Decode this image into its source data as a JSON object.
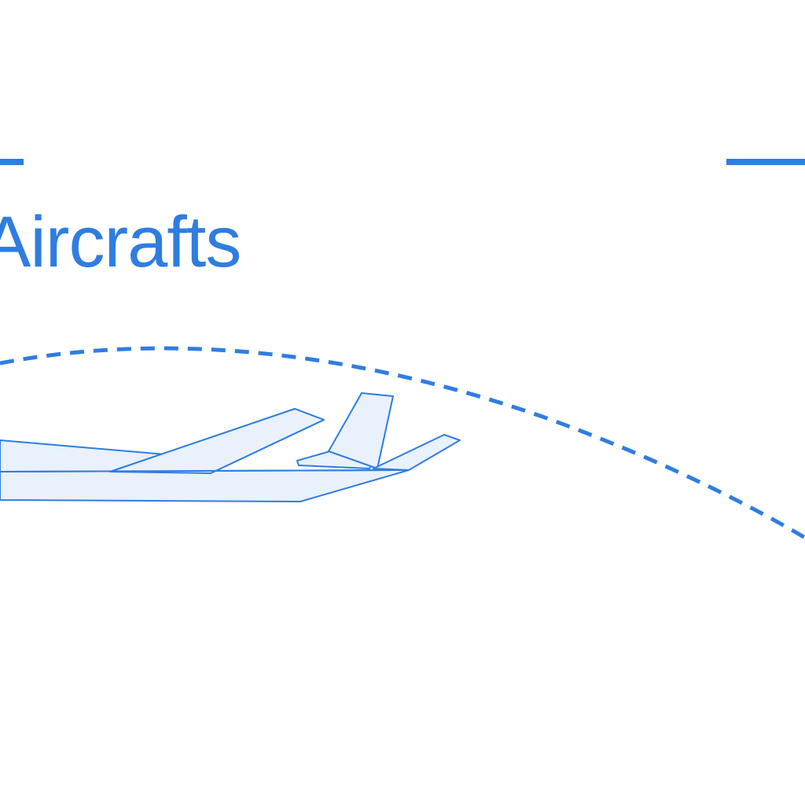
{
  "heading": {
    "text": "Aircrafts"
  },
  "colors": {
    "accent": "#2f7de1",
    "fill": "#e8f1fc",
    "background": "#ffffff"
  },
  "icons": {
    "illustration": "airplane-icon",
    "path": "dashed-flight-path"
  }
}
